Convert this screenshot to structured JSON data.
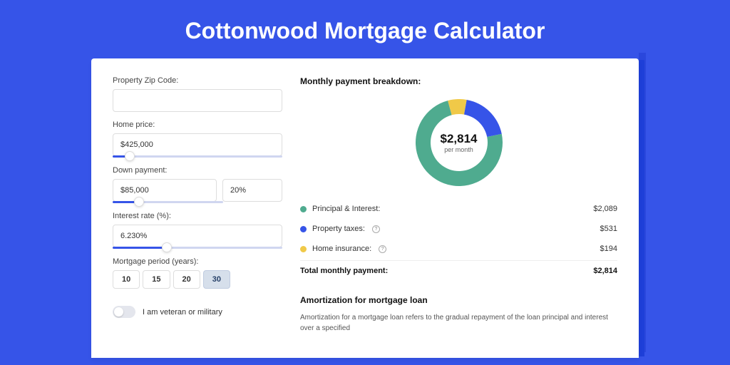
{
  "page": {
    "title": "Cottonwood Mortgage Calculator",
    "background_color": "#3654e8"
  },
  "form": {
    "zip_label": "Property Zip Code:",
    "zip_value": "",
    "home_price_label": "Home price:",
    "home_price_value": "$425,000",
    "home_price_slider_pct": 10,
    "dp_label": "Down payment:",
    "dp_value": "$85,000",
    "dp_pct_value": "20%",
    "dp_slider_pct": 24,
    "rate_label": "Interest rate (%):",
    "rate_value": "6.230%",
    "rate_slider_pct": 32,
    "period_label": "Mortgage period (years):",
    "periods": [
      "10",
      "15",
      "20",
      "30"
    ],
    "period_selected_index": 3,
    "veteran_label": "I am veteran or military",
    "veteran_on": false
  },
  "breakdown": {
    "title": "Monthly payment breakdown:",
    "center_amount": "$2,814",
    "center_sub": "per month",
    "segments": [
      {
        "label": "Principal & Interest:",
        "value": "$2,089",
        "color": "#4fab8f",
        "pct": 74,
        "has_info": false
      },
      {
        "label": "Property taxes:",
        "value": "$531",
        "color": "#3654e8",
        "pct": 19,
        "has_info": true
      },
      {
        "label": "Home insurance:",
        "value": "$194",
        "color": "#f0c948",
        "pct": 7,
        "has_info": true
      }
    ],
    "total_label": "Total monthly payment:",
    "total_value": "$2,814"
  },
  "amortization": {
    "title": "Amortization for mortgage loan",
    "text": "Amortization for a mortgage loan refers to the gradual repayment of the loan principal and interest over a specified"
  },
  "chart_style": {
    "donut_outer_radius": 61,
    "donut_inner_radius": 40,
    "background_color": "#ffffff"
  }
}
